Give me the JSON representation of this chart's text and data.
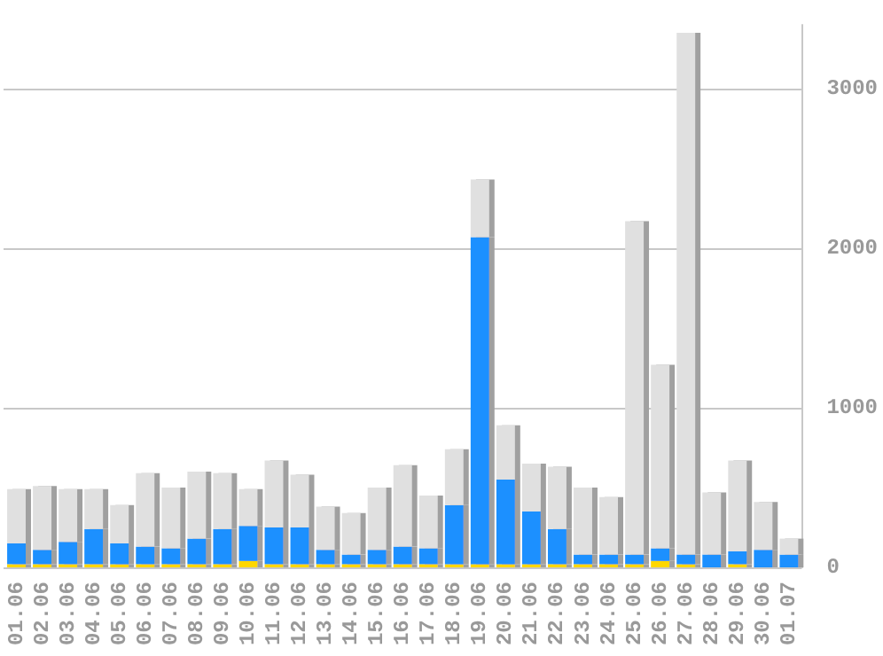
{
  "chart_data": {
    "type": "bar",
    "categories": [
      "01.06",
      "02.06",
      "03.06",
      "04.06",
      "05.06",
      "06.06",
      "07.06",
      "08.06",
      "09.06",
      "10.06",
      "11.06",
      "12.06",
      "13.06",
      "14.06",
      "15.06",
      "16.06",
      "17.06",
      "18.06",
      "19.06",
      "20.06",
      "21.06",
      "22.06",
      "23.06",
      "24.06",
      "25.06",
      "26.06",
      "27.06",
      "28.06",
      "29.06",
      "30.06",
      "01.07"
    ],
    "stacked": true,
    "series": [
      {
        "color": "#ffd700",
        "values": [
          20,
          20,
          20,
          20,
          20,
          20,
          20,
          20,
          20,
          40,
          20,
          20,
          20,
          20,
          20,
          20,
          20,
          20,
          20,
          20,
          20,
          20,
          20,
          20,
          20,
          40,
          20,
          0,
          20,
          0,
          0
        ]
      },
      {
        "color": "#1e90ff",
        "values": [
          130,
          90,
          140,
          220,
          130,
          110,
          100,
          160,
          220,
          220,
          230,
          230,
          90,
          60,
          90,
          110,
          100,
          370,
          2050,
          530,
          330,
          220,
          60,
          60,
          60,
          80,
          60,
          80,
          80,
          110,
          80
        ]
      },
      {
        "color": "#e0e0e0",
        "values": [
          340,
          400,
          330,
          250,
          240,
          460,
          380,
          420,
          350,
          230,
          420,
          330,
          270,
          260,
          390,
          510,
          330,
          350,
          360,
          340,
          300,
          390,
          420,
          360,
          2090,
          1150,
          3270,
          390,
          570,
          300,
          100
        ]
      }
    ],
    "ylim": [
      0,
      3400
    ],
    "yticks": [
      0,
      1000,
      2000,
      3000
    ],
    "grid": "y"
  }
}
